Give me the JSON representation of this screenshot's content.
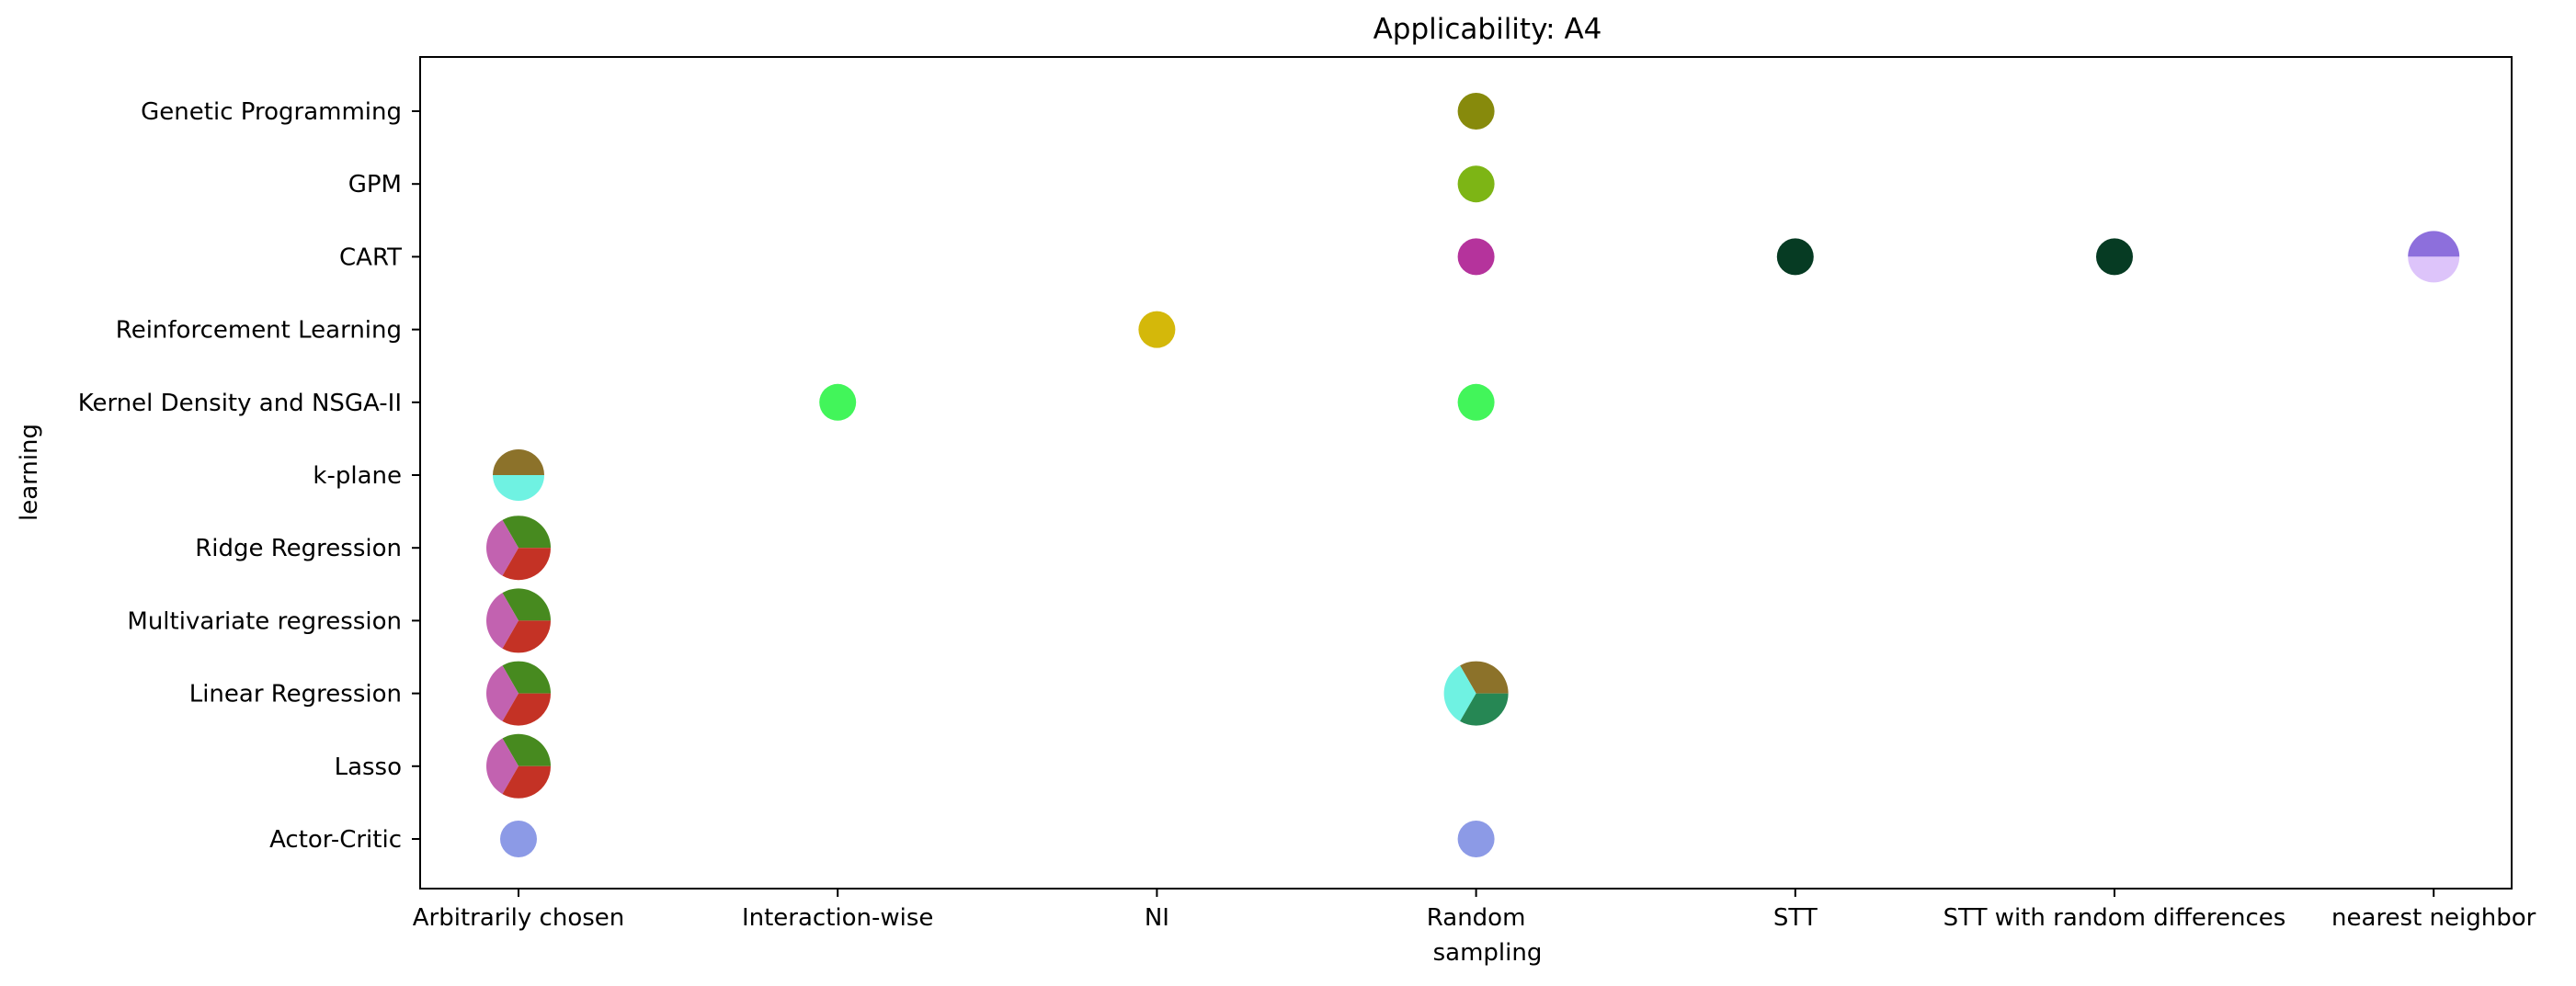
{
  "chart_data": {
    "type": "scatter",
    "title": "Applicability: A4",
    "xlabel": "sampling",
    "ylabel": "learning",
    "x_categories": [
      "Arbitrarily chosen",
      "Interaction-wise",
      "NI",
      "Random",
      "STT",
      "STT with random differences",
      "nearest neighbor"
    ],
    "y_categories": [
      "Actor-Critic",
      "Lasso",
      "Linear Regression",
      "Multivariate regression",
      "Ridge Regression",
      "k-plane",
      "Kernel Density and NSGA-II",
      "Reinforcement Learning",
      "CART",
      "GPM",
      "Genetic Programming"
    ],
    "grid": false,
    "legend": "none",
    "points": [
      {
        "x": "Arbitrarily chosen",
        "y": "Actor-Critic",
        "slices": [
          {
            "color": "#8c9ae6",
            "fraction": 1
          }
        ]
      },
      {
        "x": "Arbitrarily chosen",
        "y": "Lasso",
        "slices": [
          {
            "color": "#478a1f",
            "fraction": 0.3333
          },
          {
            "color": "#c262b0",
            "fraction": 0.3333
          },
          {
            "color": "#c43225",
            "fraction": 0.3334
          }
        ]
      },
      {
        "x": "Arbitrarily chosen",
        "y": "Linear Regression",
        "slices": [
          {
            "color": "#478a1f",
            "fraction": 0.3333
          },
          {
            "color": "#c262b0",
            "fraction": 0.3333
          },
          {
            "color": "#c43225",
            "fraction": 0.3334
          }
        ]
      },
      {
        "x": "Arbitrarily chosen",
        "y": "Multivariate regression",
        "slices": [
          {
            "color": "#478a1f",
            "fraction": 0.3333
          },
          {
            "color": "#c262b0",
            "fraction": 0.3333
          },
          {
            "color": "#c43225",
            "fraction": 0.3334
          }
        ]
      },
      {
        "x": "Arbitrarily chosen",
        "y": "Ridge Regression",
        "slices": [
          {
            "color": "#478a1f",
            "fraction": 0.3333
          },
          {
            "color": "#c262b0",
            "fraction": 0.3333
          },
          {
            "color": "#c43225",
            "fraction": 0.3334
          }
        ]
      },
      {
        "x": "Arbitrarily chosen",
        "y": "k-plane",
        "slices": [
          {
            "color": "#8c722a",
            "fraction": 0.5
          },
          {
            "color": "#6ff2e2",
            "fraction": 0.5
          }
        ]
      },
      {
        "x": "Interaction-wise",
        "y": "Kernel Density and NSGA-II",
        "slices": [
          {
            "color": "#42f55a",
            "fraction": 1
          }
        ]
      },
      {
        "x": "NI",
        "y": "Reinforcement Learning",
        "slices": [
          {
            "color": "#d4b80a",
            "fraction": 1
          }
        ]
      },
      {
        "x": "Random",
        "y": "Actor-Critic",
        "slices": [
          {
            "color": "#8c9ae6",
            "fraction": 1
          }
        ]
      },
      {
        "x": "Random",
        "y": "Linear Regression",
        "slices": [
          {
            "color": "#8c722a",
            "fraction": 0.3333
          },
          {
            "color": "#6ff2e2",
            "fraction": 0.3333
          },
          {
            "color": "#268754",
            "fraction": 0.3334
          }
        ]
      },
      {
        "x": "Random",
        "y": "Kernel Density and NSGA-II",
        "slices": [
          {
            "color": "#42f55a",
            "fraction": 1
          }
        ]
      },
      {
        "x": "Random",
        "y": "CART",
        "slices": [
          {
            "color": "#b5339c",
            "fraction": 1
          }
        ]
      },
      {
        "x": "Random",
        "y": "GPM",
        "slices": [
          {
            "color": "#7db515",
            "fraction": 1
          }
        ]
      },
      {
        "x": "Random",
        "y": "Genetic Programming",
        "slices": [
          {
            "color": "#878a0c",
            "fraction": 1
          }
        ]
      },
      {
        "x": "STT",
        "y": "CART",
        "slices": [
          {
            "color": "#063b23",
            "fraction": 1
          }
        ]
      },
      {
        "x": "STT with random differences",
        "y": "CART",
        "slices": [
          {
            "color": "#063b23",
            "fraction": 1
          }
        ]
      },
      {
        "x": "nearest neighbor",
        "y": "CART",
        "slices": [
          {
            "color": "#8d6fdc",
            "fraction": 0.5
          },
          {
            "color": "#ddc4fa",
            "fraction": 0.5
          }
        ]
      }
    ]
  }
}
